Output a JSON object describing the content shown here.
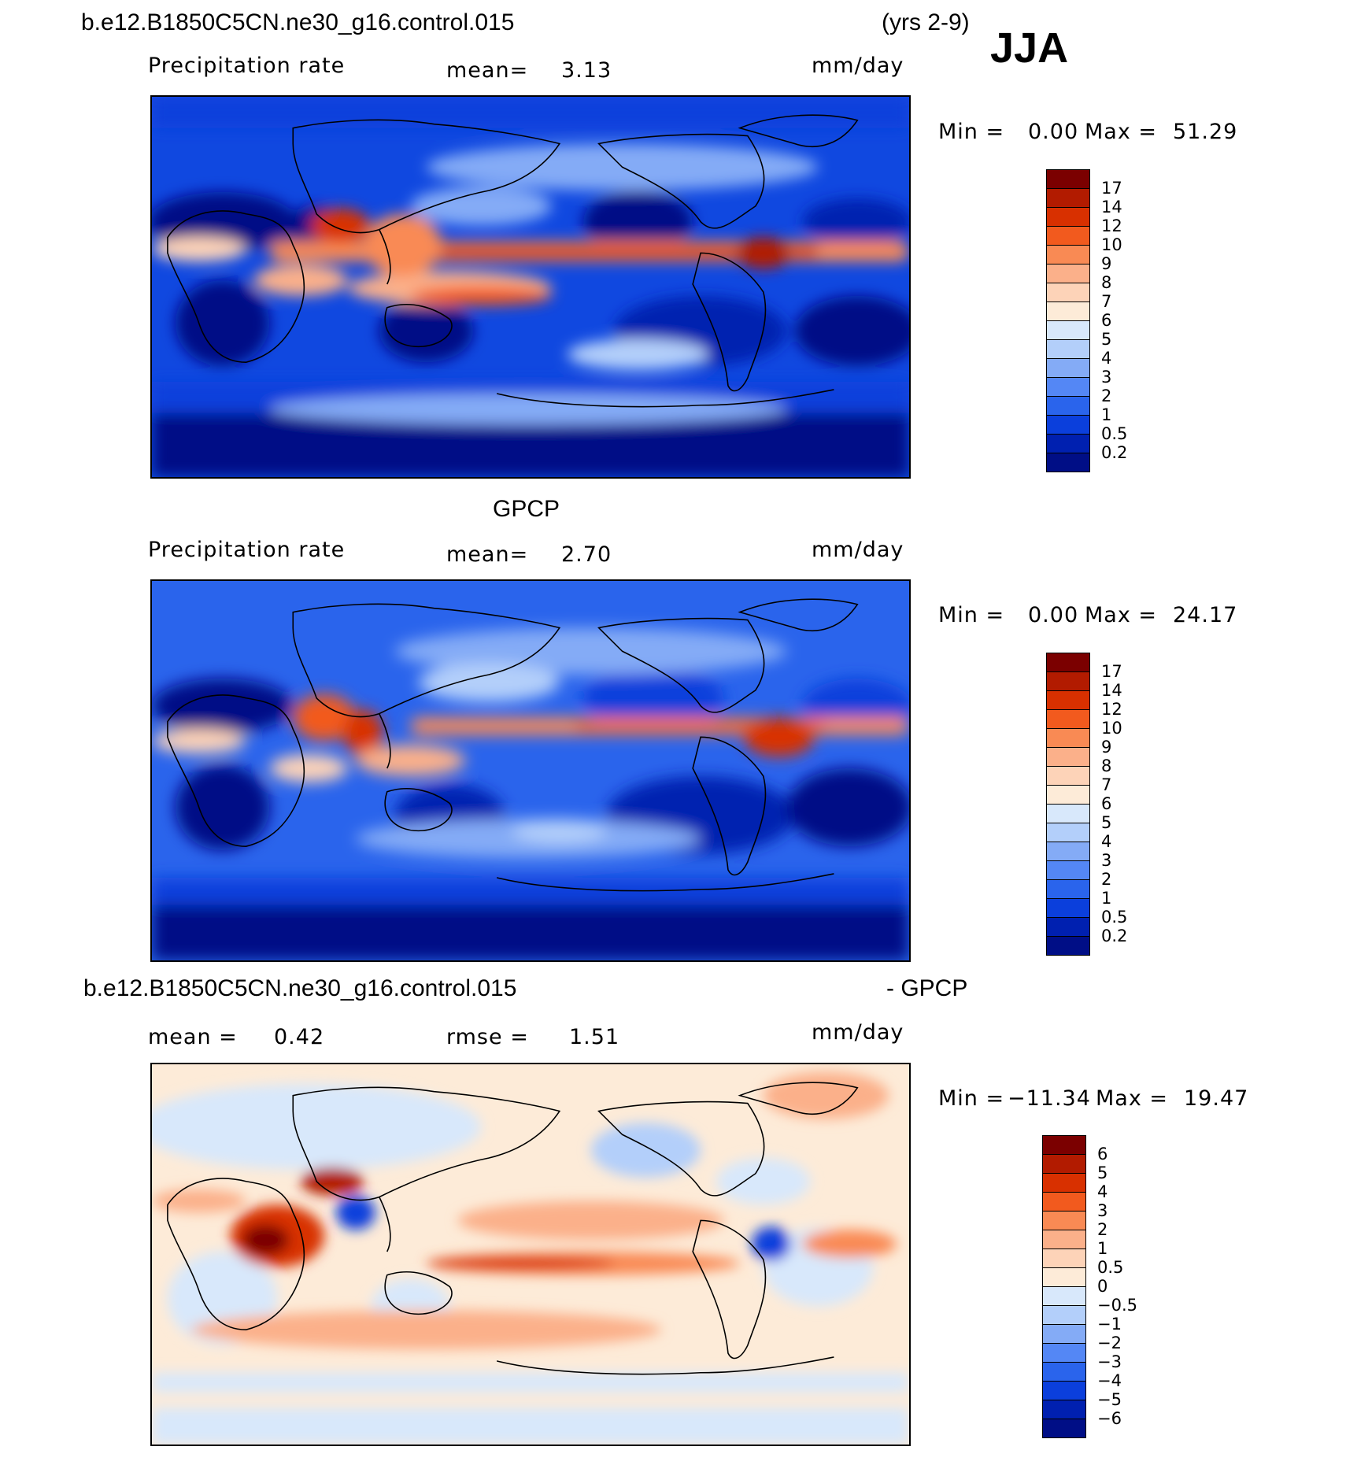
{
  "header": {
    "case_name": "b.e12.B1850C5CN.ne30_g16.control.015",
    "years": "(yrs 2-9)",
    "season": "JJA"
  },
  "panel1": {
    "variable": "Precipitation rate",
    "mean_label": "mean=",
    "mean_value": "3.13",
    "units": "mm/day",
    "min_label": "Min =",
    "min_value": "0.00",
    "max_label": "Max =",
    "max_value": "51.29",
    "colorbar_labels": [
      "17",
      "14",
      "12",
      "10",
      "9",
      "8",
      "7",
      "6",
      "5",
      "4",
      "3",
      "2",
      "1",
      "0.5",
      "0.2"
    ]
  },
  "panel2": {
    "title": "GPCP",
    "variable": "Precipitation rate",
    "mean_label": "mean=",
    "mean_value": "2.70",
    "units": "mm/day",
    "min_label": "Min =",
    "min_value": "0.00",
    "max_label": "Max =",
    "max_value": "24.17",
    "colorbar_labels": [
      "17",
      "14",
      "12",
      "10",
      "9",
      "8",
      "7",
      "6",
      "5",
      "4",
      "3",
      "2",
      "1",
      "0.5",
      "0.2"
    ]
  },
  "panel3": {
    "title_left": "b.e12.B1850C5CN.ne30_g16.control.015",
    "title_right": "- GPCP",
    "mean_label": "mean =",
    "mean_value": "0.42",
    "rmse_label": "rmse =",
    "rmse_value": "1.51",
    "units": "mm/day",
    "min_label": "Min =",
    "min_value": "−11.34",
    "max_label": "Max =",
    "max_value": "19.47",
    "colorbar_labels": [
      "6",
      "5",
      "4",
      "3",
      "2",
      "1",
      "0.5",
      "0",
      "−0.5",
      "−1",
      "−2",
      "−3",
      "−4",
      "−5",
      "−6"
    ]
  },
  "colors": {
    "precip_scale": [
      "#7b0000",
      "#b21b00",
      "#d83000",
      "#f25a1e",
      "#f98a54",
      "#fbb08a",
      "#fdd3b8",
      "#fdebd8",
      "#d8e8fb",
      "#b3cffa",
      "#84abf6",
      "#5487f5",
      "#2a64ec",
      "#0b3fdc",
      "#0020b0",
      "#000e86"
    ],
    "diff_scale": [
      "#7b0000",
      "#b21b00",
      "#d83000",
      "#f25a1e",
      "#f98a54",
      "#fbb08a",
      "#fdd3b8",
      "#fdebd8",
      "#d8e8fb",
      "#b3cffa",
      "#84abf6",
      "#5487f5",
      "#2a64ec",
      "#0b3fdc",
      "#0020b0",
      "#000e86"
    ]
  }
}
